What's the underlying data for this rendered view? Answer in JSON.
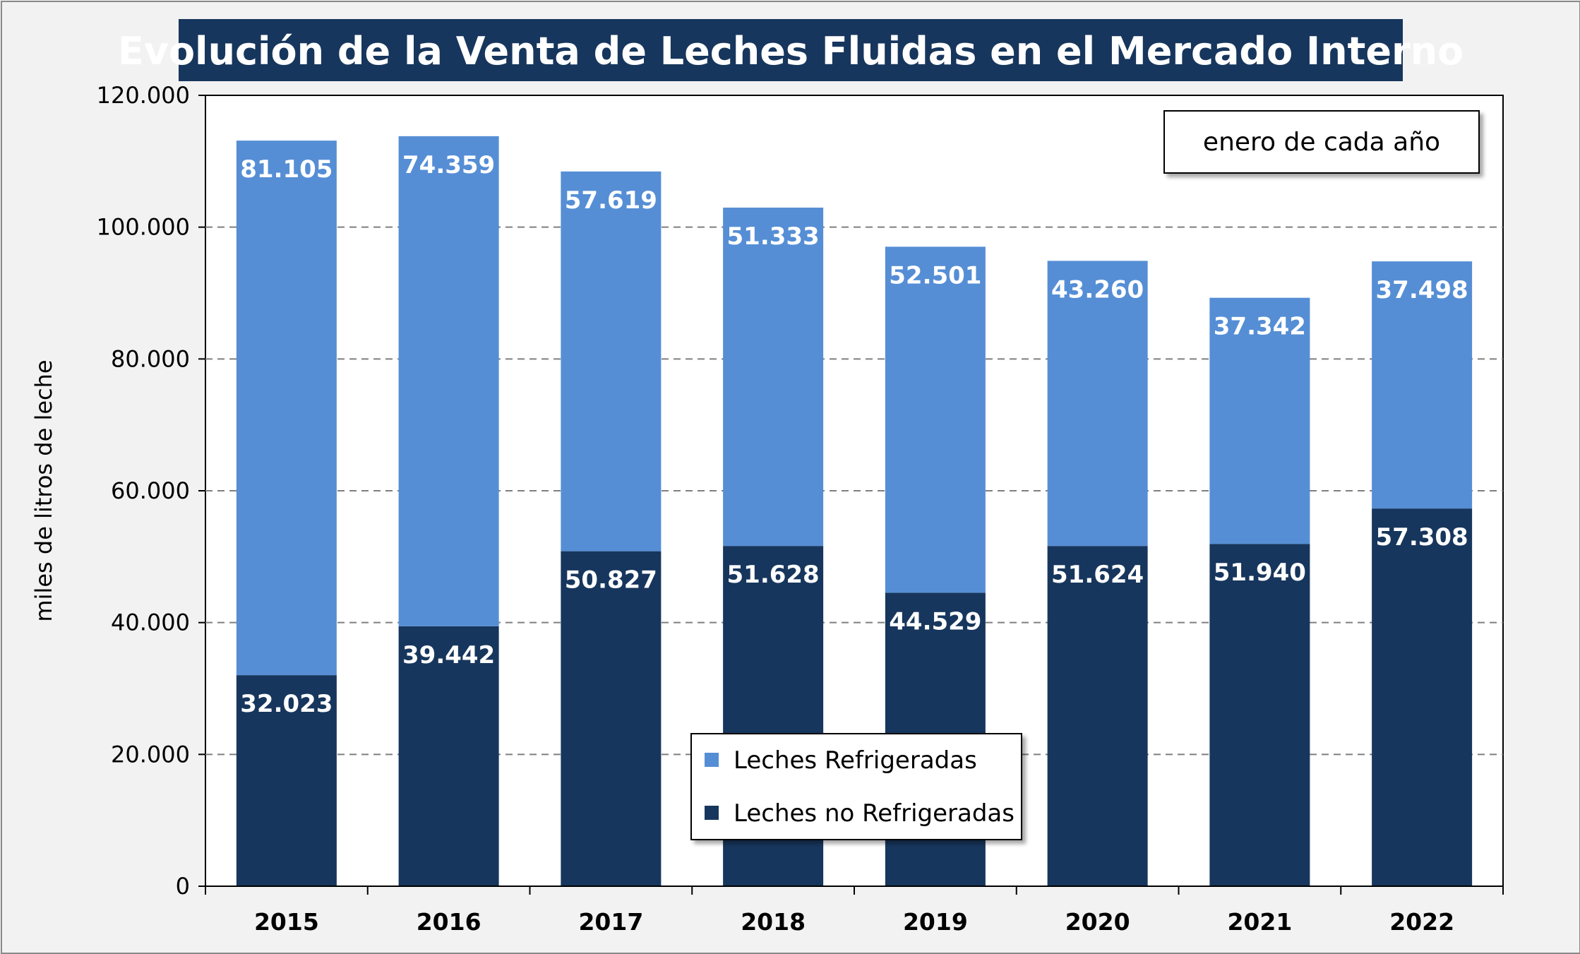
{
  "chart_data": {
    "type": "bar",
    "stacked": true,
    "title": "Evolución de la Venta de Leches Fluidas en el Mercado Interno",
    "ylabel": "miles de litros de leche",
    "xlabel": "",
    "annotation": "enero de cada año",
    "categories": [
      "2015",
      "2016",
      "2017",
      "2018",
      "2019",
      "2020",
      "2021",
      "2022"
    ],
    "series": [
      {
        "name": "Leches no Refrigeradas",
        "color": "#17365d",
        "values": [
          32023,
          39442,
          50827,
          51628,
          44529,
          51624,
          51940,
          57308
        ],
        "labels": [
          "32.023",
          "39.442",
          "50.827",
          "51.628",
          "44.529",
          "51.624",
          "51.940",
          "57.308"
        ]
      },
      {
        "name": "Leches Refrigeradas",
        "color": "#558ed5",
        "values": [
          81105,
          74359,
          57619,
          51333,
          52501,
          43260,
          37342,
          37498
        ],
        "labels": [
          "81.105",
          "74.359",
          "57.619",
          "51.333",
          "52.501",
          "43.260",
          "37.342",
          "37.498"
        ]
      }
    ],
    "ylim": [
      0,
      120000
    ],
    "yticks": [
      0,
      20000,
      40000,
      60000,
      80000,
      100000,
      120000
    ],
    "ytick_labels": [
      "0",
      "20.000",
      "40.000",
      "60.000",
      "80.000",
      "100.000",
      "120.000"
    ],
    "grid": true,
    "legend_position": "bottom-center",
    "legend_order": [
      "Leches Refrigeradas",
      "Leches no Refrigeradas"
    ]
  },
  "colors": {
    "title_background": "#17365d",
    "plot_background": "#ffffff",
    "page_background": "#f2f2f2",
    "grid": "#7f7f7f"
  }
}
